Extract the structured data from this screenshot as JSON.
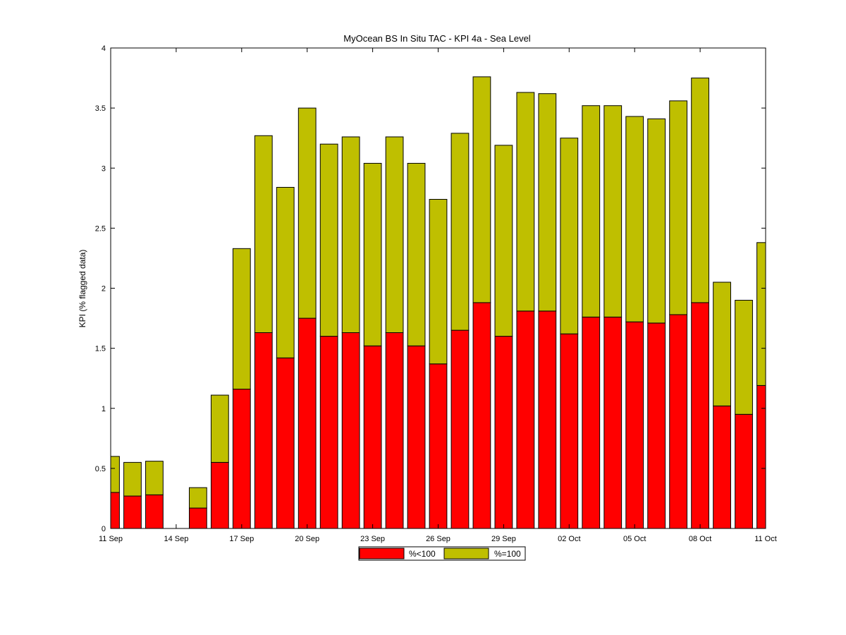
{
  "chart_data": {
    "type": "bar",
    "stacked": true,
    "title": "MyOcean  BS In Situ TAC - KPI 4a - Sea Level",
    "xlabel": "",
    "ylabel": "KPI (% flagged data)",
    "xlim": [
      "11 Sep",
      "11 Oct"
    ],
    "ylim": [
      0,
      4
    ],
    "yticks": [
      "0",
      "0.5",
      "1",
      "1.5",
      "2",
      "2.5",
      "3",
      "3.5",
      "4"
    ],
    "xticks": [
      "11 Sep",
      "14 Sep",
      "17 Sep",
      "20 Sep",
      "23 Sep",
      "26 Sep",
      "29 Sep",
      "02 Oct",
      "05 Oct",
      "08 Oct",
      "11 Oct"
    ],
    "categories": [
      "11 Sep",
      "12 Sep",
      "13 Sep",
      "14 Sep",
      "15 Sep",
      "16 Sep",
      "17 Sep",
      "18 Sep",
      "19 Sep",
      "20 Sep",
      "21 Sep",
      "22 Sep",
      "23 Sep",
      "24 Sep",
      "25 Sep",
      "26 Sep",
      "27 Sep",
      "28 Sep",
      "29 Sep",
      "30 Sep",
      "01 Oct",
      "02 Oct",
      "03 Oct",
      "04 Oct",
      "05 Oct",
      "06 Oct",
      "07 Oct",
      "08 Oct",
      "09 Oct",
      "10 Oct",
      "11 Oct"
    ],
    "series": [
      {
        "name": "%<100",
        "color": "#ff0000",
        "values": [
          0.3,
          0.27,
          0.28,
          0,
          0.17,
          0.55,
          1.16,
          1.63,
          1.42,
          1.75,
          1.6,
          1.63,
          1.52,
          1.63,
          1.52,
          1.37,
          1.65,
          1.88,
          1.6,
          1.81,
          1.81,
          1.62,
          1.76,
          1.76,
          1.72,
          1.71,
          1.78,
          1.88,
          1.02,
          0.95,
          1.19
        ]
      },
      {
        "name": "%=100",
        "color": "#bfbf00",
        "values": [
          0.3,
          0.28,
          0.28,
          0,
          0.17,
          0.56,
          1.17,
          1.64,
          1.42,
          1.75,
          1.6,
          1.63,
          1.52,
          1.63,
          1.52,
          1.37,
          1.64,
          1.88,
          1.59,
          1.82,
          1.81,
          1.63,
          1.76,
          1.76,
          1.71,
          1.7,
          1.78,
          1.87,
          1.03,
          0.95,
          1.19
        ]
      }
    ],
    "legend_position": "bottom-center",
    "grid": false
  }
}
